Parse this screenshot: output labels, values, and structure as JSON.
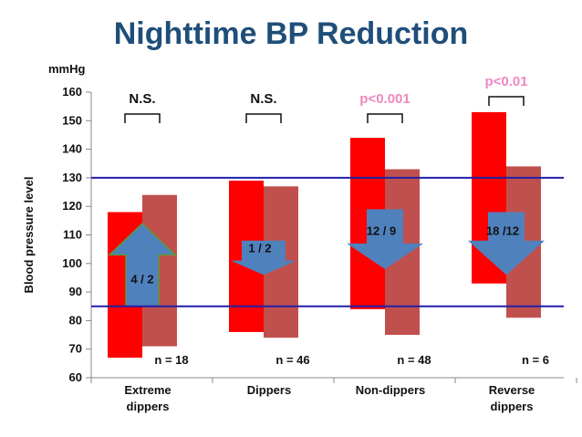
{
  "chart_data": {
    "type": "bar",
    "title": "Nighttime BP Reduction",
    "ylabel": "Blood pressure level",
    "yunit": "mmHg",
    "ylim": [
      60,
      160
    ],
    "yticks": [
      60,
      70,
      80,
      90,
      100,
      110,
      120,
      130,
      140,
      150,
      160
    ],
    "reference_lines": [
      130,
      85
    ],
    "categories": [
      "Extreme\ndippers",
      "Dippers",
      "Non-dippers",
      "Reverse\ndippers"
    ],
    "series": [
      {
        "name": "",
        "color": "#ff0000",
        "ranges": [
          [
            67,
            118
          ],
          [
            76,
            129
          ],
          [
            84,
            144
          ],
          [
            93,
            153
          ]
        ]
      },
      {
        "name": "",
        "color": "#c0504d",
        "ranges": [
          [
            71,
            124
          ],
          [
            74,
            127
          ],
          [
            75,
            133
          ],
          [
            81,
            134
          ]
        ]
      }
    ],
    "significance": [
      "N.S.",
      "N.S.",
      "p<0.001",
      "p<0.01"
    ],
    "significance_colors": [
      "#111111",
      "#111111",
      "#f088c0",
      "#f088c0"
    ],
    "n_labels": [
      "n = 18",
      "n = 46",
      "n = 48",
      "n = 6"
    ],
    "change_labels": [
      "4 / 2",
      "1 / 2",
      "12 / 9",
      "18 /12"
    ],
    "change_direction": [
      "up",
      "down",
      "down",
      "down"
    ],
    "arrow_color": "#4f81bd",
    "line_color": "#1f1fa8"
  }
}
